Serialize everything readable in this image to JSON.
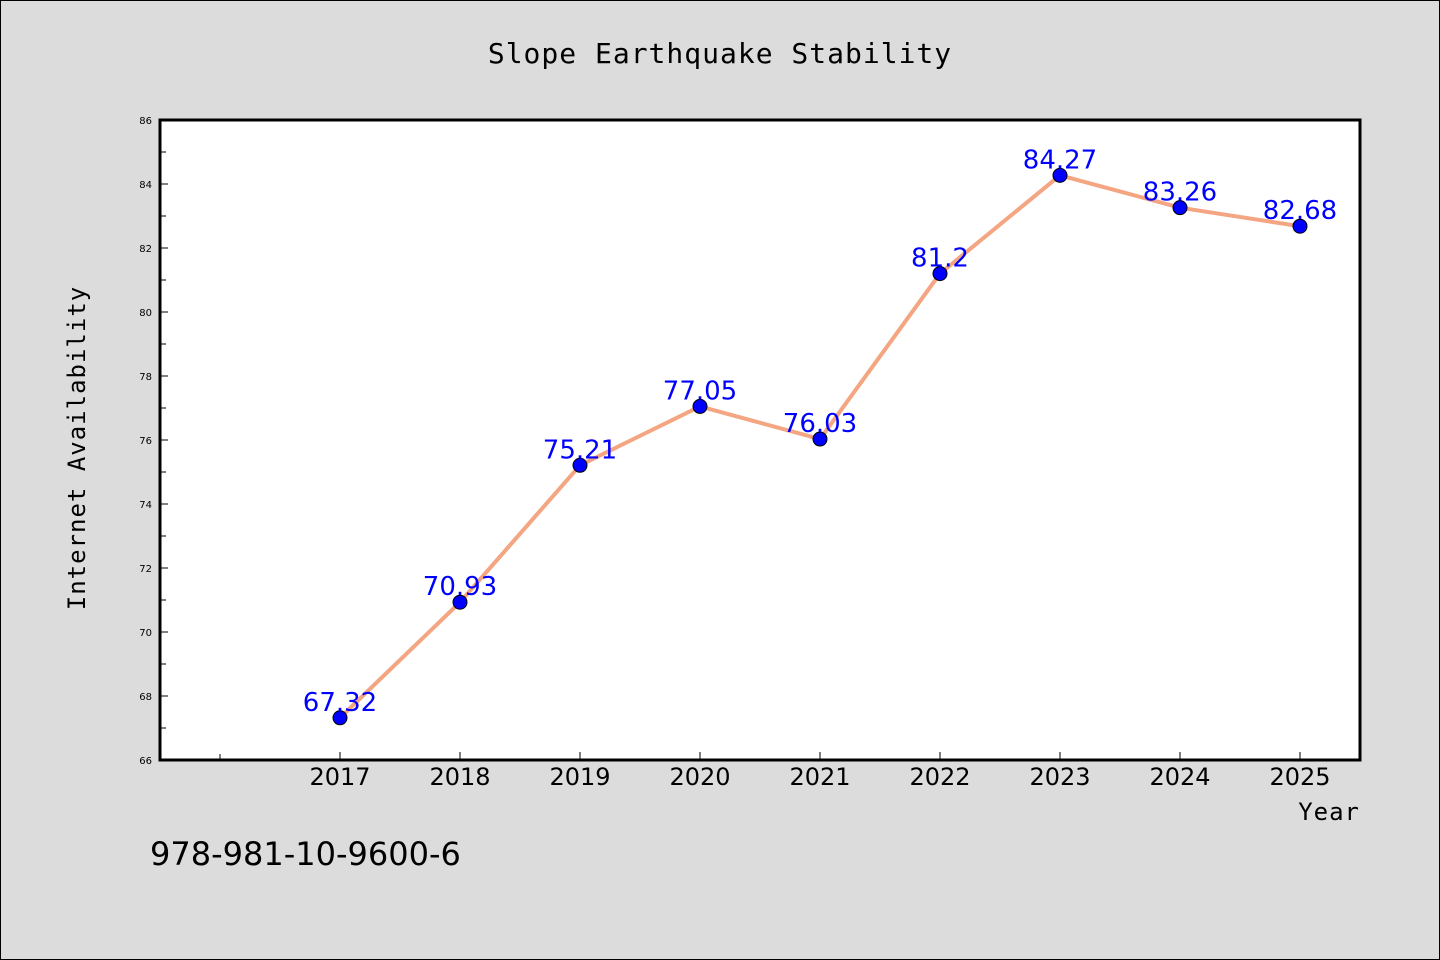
{
  "chart_data": {
    "type": "line",
    "title": "Slope Earthquake Stability",
    "xlabel": "Year",
    "ylabel": "Internet Availability",
    "categories": [
      "2017",
      "2018",
      "2019",
      "2020",
      "2021",
      "2022",
      "2023",
      "2024",
      "2025"
    ],
    "series": [
      {
        "values": [
          67.32,
          70.93,
          75.21,
          77.05,
          76.03,
          81.2,
          84.27,
          83.26,
          82.68
        ]
      }
    ],
    "data_labels": [
      "67.32",
      "70.93",
      "75.21",
      "77.05",
      "76.03",
      "81.2",
      "84.27",
      "83.26",
      "82.68"
    ],
    "ylim": [
      66,
      86
    ],
    "yticks": [
      "66",
      "68",
      "70",
      "72",
      "74",
      "76",
      "78",
      "80",
      "82",
      "84",
      "86"
    ],
    "grid": false,
    "legend": "none",
    "colors": {
      "line": "#f4a582",
      "marker": "#0000ff",
      "label": "#0000ff",
      "background": "#dcdcdc",
      "plot_background": "#ffffff"
    }
  },
  "footer": {
    "isbn": "978-981-10-9600-6"
  }
}
